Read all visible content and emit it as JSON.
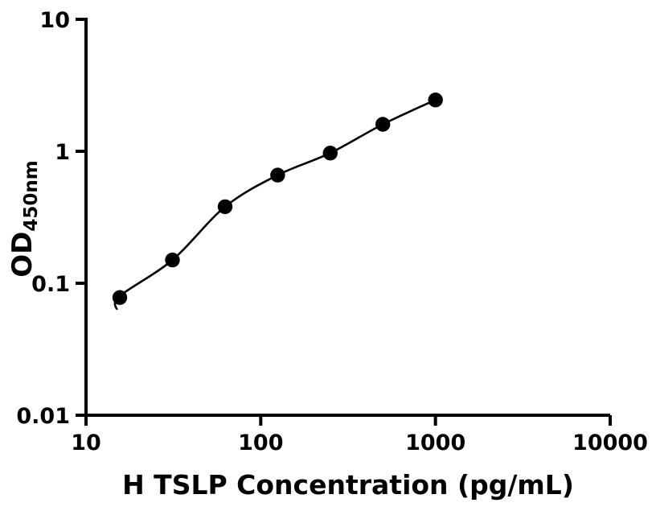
{
  "figure": {
    "background": "#ffffff",
    "accent": "#000000"
  },
  "chart_data": {
    "type": "scatter",
    "title": "",
    "xlabel": "H TSLP Concentration (pg/mL)",
    "ylabel": "OD450nm",
    "ylabel_main": "OD",
    "ylabel_sub": "450nm",
    "x_scale": "log",
    "y_scale": "log",
    "xlim": [
      10,
      10000
    ],
    "ylim": [
      0.01,
      10
    ],
    "grid": false,
    "legend": "none",
    "x_ticks": [
      {
        "value": 10,
        "label": "10"
      },
      {
        "value": 100,
        "label": "100"
      },
      {
        "value": 1000,
        "label": "1000"
      },
      {
        "value": 10000,
        "label": "10000"
      }
    ],
    "y_ticks": [
      {
        "value": 10,
        "label": "10"
      },
      {
        "value": 1,
        "label": "1"
      },
      {
        "value": 0.1,
        "label": "0.1"
      },
      {
        "value": 0.01,
        "label": "0.01"
      }
    ],
    "series": [
      {
        "name": "standard-points",
        "type": "scatter",
        "marker": "circle",
        "color": "#000000",
        "points": [
          {
            "x": 15.6,
            "y": 0.078
          },
          {
            "x": 31.25,
            "y": 0.15
          },
          {
            "x": 62.5,
            "y": 0.38
          },
          {
            "x": 125,
            "y": 0.66
          },
          {
            "x": 250,
            "y": 0.97
          },
          {
            "x": 500,
            "y": 1.6
          },
          {
            "x": 1000,
            "y": 2.45
          }
        ]
      },
      {
        "name": "fit-curve",
        "type": "line",
        "color": "#000000",
        "points": [
          {
            "x": 15,
            "y": 0.063
          },
          {
            "x": 15.6,
            "y": 0.08
          },
          {
            "x": 31.25,
            "y": 0.15
          },
          {
            "x": 62.5,
            "y": 0.38
          },
          {
            "x": 125,
            "y": 0.66
          },
          {
            "x": 250,
            "y": 0.97
          },
          {
            "x": 500,
            "y": 1.6
          },
          {
            "x": 1000,
            "y": 2.45
          }
        ]
      }
    ]
  }
}
